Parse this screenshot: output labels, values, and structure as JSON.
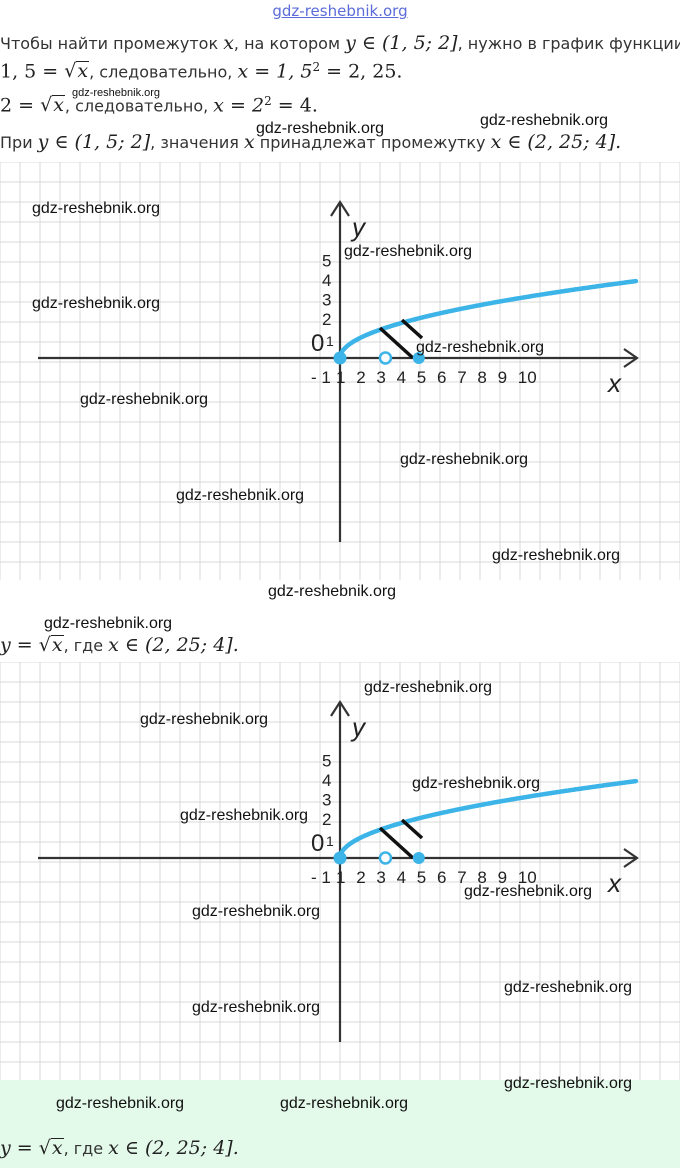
{
  "header": {
    "watermark": "gdz-reshebnik.org"
  },
  "text": {
    "l1_a": "Чтобы найти промежуток ",
    "l1_x": "x",
    "l1_b": ", на котором ",
    "l1_y": "y ∈ (1, 5; 2]",
    "l1_c": ", нужно в график функции",
    "l2_a": "1, 5 = ",
    "l2_rad": "x",
    "l2_b": ", следовательно, ",
    "l2_c": "x = 1, 5",
    "l2_sup": "2",
    "l2_d": " = 2, 25.",
    "l3_a": "2 = ",
    "l3_rad": "x",
    "l3_b": ", следовательно, ",
    "l3_c": "x = 2",
    "l3_sup": "2",
    "l3_d": " = 4.",
    "l4_a": "При ",
    "l4_y": "y ∈ (1, 5; 2]",
    "l4_b": ", значения ",
    "l4_x": "x",
    "l4_c": " принадлежат промежутку ",
    "l4_d": "x ∈ (2, 25; 4].",
    "l5_a": "y = ",
    "l5_rad": "x",
    "l5_b": ", где ",
    "l5_c": "x ∈ (2, 25; 4].",
    "ans_a": "y = ",
    "ans_rad": "x",
    "ans_b": ", где ",
    "ans_c": "x ∈ (2, 25; 4]."
  },
  "graph": {
    "x_label": "x",
    "y_label": "y",
    "origin_label": "0",
    "y_ticks": [
      "1",
      "2",
      "3",
      "4",
      "5"
    ],
    "x_ticks": [
      "- 1",
      "1",
      "2",
      "3",
      "4",
      "5",
      "6",
      "7",
      "8",
      "9",
      "10"
    ],
    "open_point_x": 2.25,
    "closed_point_x": 4,
    "function": "y = sqrt(x)"
  },
  "watermarks": [
    "gdz-reshebnik.org",
    "gdz-reshebnik.org",
    "gdz-reshebnik.org",
    "gdz-reshebnik.org",
    "gdz-reshebnik.org",
    "gdz-reshebnik.org",
    "gdz-reshebnik.org",
    "gdz-reshebnik.org",
    "gdz-reshebnik.org",
    "gdz-reshebnik.org",
    "gdz-reshebnik.org",
    "gdz-reshebnik.org",
    "gdz-reshebnik.org",
    "gdz-reshebnik.org",
    "gdz-reshebnik.org",
    "gdz-reshebnik.org",
    "gdz-reshebnik.org",
    "gdz-reshebnik.org",
    "gdz-reshebnik.org",
    "gdz-reshebnik.org",
    "gdz-reshebnik.org",
    "gdz-reshebnik.org"
  ],
  "colors": {
    "curve": "#3cb4e8",
    "axis": "#333333",
    "grid": "#d9d9d9",
    "answer_bg": "#e3f9ea"
  }
}
